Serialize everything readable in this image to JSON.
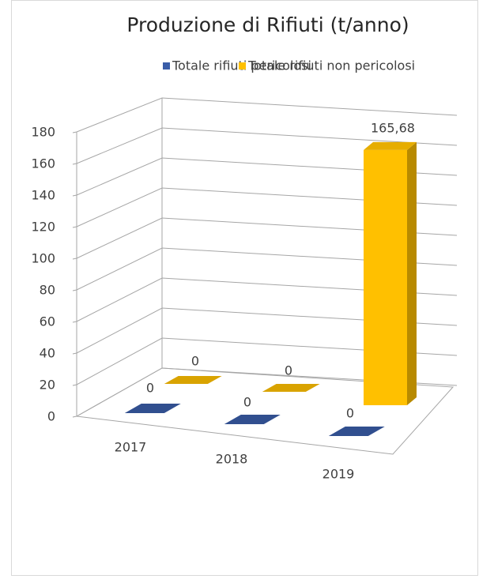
{
  "chart_data": {
    "type": "bar3d",
    "title": "Produzione di Rifiuti (t/anno)",
    "categories": [
      "2017",
      "2018",
      "2019"
    ],
    "series": [
      {
        "name": "Totale rifiuti pericolosi",
        "color": "#3a5da8",
        "values": [
          0,
          0,
          0
        ]
      },
      {
        "name": "Totale rifiuti non pericolosi",
        "color": "#ffc000",
        "values": [
          0,
          0,
          165.68
        ],
        "value_labels": [
          "0",
          "0",
          "165,68"
        ]
      }
    ],
    "ylim": [
      0,
      180
    ],
    "yticks": [
      0,
      20,
      40,
      60,
      80,
      100,
      120,
      140,
      160,
      180
    ],
    "grid": true,
    "legend": "top"
  }
}
